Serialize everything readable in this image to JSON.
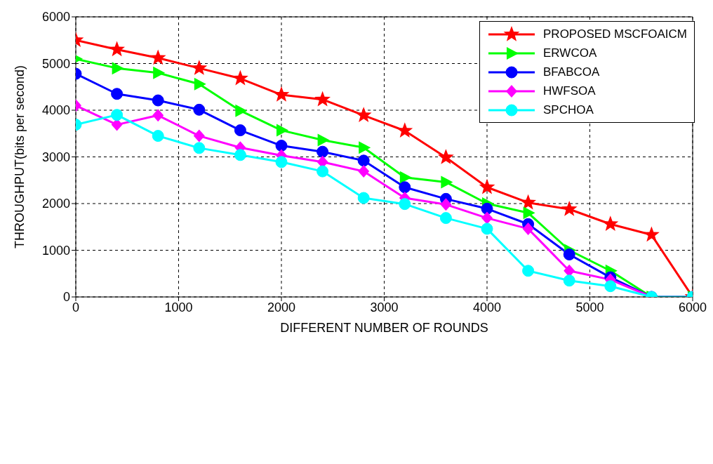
{
  "chart_data": {
    "type": "line",
    "xlabel": "DIFFERENT NUMBER OF ROUNDS",
    "ylabel": "THROUGHPUT(bits per second)",
    "x": [
      0,
      400,
      800,
      1200,
      1600,
      2000,
      2400,
      2800,
      3200,
      3600,
      4000,
      4400,
      4800,
      5200,
      5600,
      6000
    ],
    "series": [
      {
        "name": "PROPOSED MSCFOAICM",
        "color": "#ff0000",
        "marker": "star",
        "values": [
          5500,
          5300,
          5120,
          4900,
          4680,
          4330,
          4230,
          3890,
          3560,
          2990,
          2350,
          2020,
          1880,
          1560,
          1330,
          0
        ]
      },
      {
        "name": "ERWCOA",
        "color": "#00ff00",
        "marker": "triangle",
        "values": [
          5100,
          4900,
          4800,
          4560,
          3990,
          3570,
          3360,
          3200,
          2560,
          2460,
          2000,
          1800,
          1000,
          560,
          0,
          0
        ]
      },
      {
        "name": "BFABCOA",
        "color": "#0000ff",
        "marker": "circle",
        "values": [
          4780,
          4350,
          4210,
          4010,
          3570,
          3240,
          3110,
          2920,
          2350,
          2100,
          1890,
          1560,
          910,
          420,
          0,
          0
        ]
      },
      {
        "name": "HWFSOA",
        "color": "#ff00ff",
        "marker": "diamond",
        "values": [
          4100,
          3690,
          3890,
          3450,
          3200,
          3030,
          2890,
          2690,
          2120,
          1980,
          1690,
          1460,
          560,
          370,
          0,
          0
        ]
      },
      {
        "name": "SPCHOA",
        "color": "#00ffff",
        "marker": "circle",
        "values": [
          3690,
          3900,
          3450,
          3190,
          3040,
          2890,
          2690,
          2120,
          1990,
          1690,
          1460,
          560,
          350,
          230,
          0,
          0
        ]
      }
    ],
    "xlim": [
      0,
      6000
    ],
    "xticks": [
      0,
      1000,
      2000,
      3000,
      4000,
      5000,
      6000
    ],
    "ylim": [
      0,
      6000
    ],
    "yticks": [
      0,
      1000,
      2000,
      3000,
      4000,
      5000,
      6000
    ],
    "grid": true,
    "legend": "top right",
    "line_style": "solid"
  }
}
